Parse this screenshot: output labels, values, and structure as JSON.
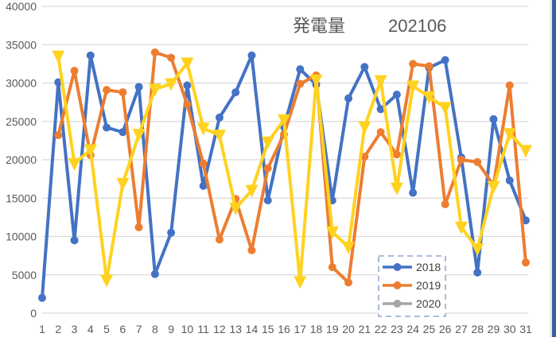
{
  "chart_data": {
    "type": "line",
    "title": "発電量　202106",
    "title_parts": {
      "label": "発電量",
      "period": "202106"
    },
    "xlabel": "",
    "ylabel": "",
    "x": [
      1,
      2,
      3,
      4,
      5,
      6,
      7,
      8,
      9,
      10,
      11,
      12,
      13,
      14,
      15,
      16,
      17,
      18,
      19,
      20,
      21,
      22,
      23,
      24,
      25,
      26,
      27,
      28,
      29,
      30,
      31
    ],
    "ylim": [
      0,
      40000
    ],
    "yticks": [
      0,
      5000,
      10000,
      15000,
      20000,
      25000,
      30000,
      35000,
      40000
    ],
    "grid": true,
    "legend_position": "inside-bottom-right",
    "series": [
      {
        "name": "2018",
        "color": "#4472c4",
        "marker": "circle",
        "values": [
          2000,
          30100,
          9500,
          33600,
          24200,
          23600,
          29500,
          5100,
          10500,
          29700,
          16600,
          25500,
          28800,
          33600,
          14700,
          24300,
          31800,
          29800,
          14700,
          28000,
          32100,
          26600,
          28500,
          15700,
          32000,
          33000,
          20300,
          5300,
          25300,
          17300,
          12100
        ]
      },
      {
        "name": "2019",
        "color": "#ed7d31",
        "marker": "circle",
        "values": [
          null,
          23200,
          31600,
          20600,
          29100,
          28800,
          11200,
          34000,
          33300,
          27200,
          19500,
          9600,
          14900,
          8200,
          18900,
          23300,
          29900,
          31000,
          6000,
          4000,
          20400,
          23600,
          20700,
          32500,
          32200,
          14200,
          20000,
          19700,
          16700,
          29700,
          6600
        ]
      },
      {
        "name": "2020",
        "color": "#ffd21f",
        "legend_color": "#a5a5a5",
        "marker": "triangle-down",
        "values": [
          null,
          33500,
          19500,
          21300,
          4300,
          16900,
          23300,
          29200,
          29900,
          32600,
          24100,
          23200,
          13700,
          16000,
          22300,
          25200,
          4100,
          30400,
          10600,
          8600,
          24300,
          30300,
          16300,
          29600,
          28200,
          26800,
          11200,
          8400,
          16500,
          23400,
          21200
        ]
      }
    ]
  },
  "legend": {
    "items": [
      {
        "label": "2018",
        "color": "#4472c4"
      },
      {
        "label": "2019",
        "color": "#ed7d31"
      },
      {
        "label": "2020",
        "color": "#a5a5a5"
      }
    ]
  }
}
